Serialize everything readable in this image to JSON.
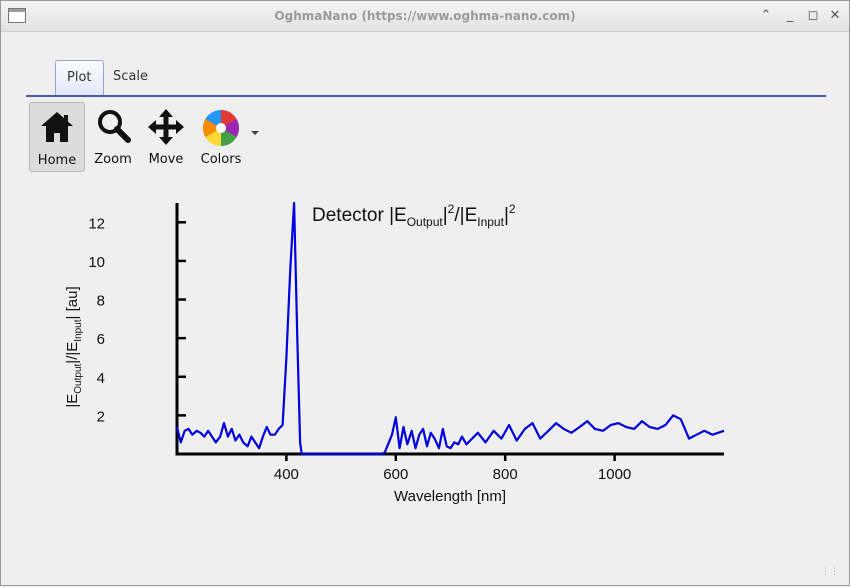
{
  "window": {
    "title": "OghmaNano (https://www.oghma-nano.com)"
  },
  "tabs": [
    {
      "label": "Plot",
      "active": true
    },
    {
      "label": "Scale",
      "active": false
    }
  ],
  "toolbar": [
    {
      "label": "Home",
      "icon": "home-icon",
      "active": true
    },
    {
      "label": "Zoom",
      "icon": "zoom-icon"
    },
    {
      "label": "Move",
      "icon": "move-icon"
    },
    {
      "label": "Colors",
      "icon": "color-wheel-icon",
      "has_dropdown": true
    }
  ],
  "chart_data": {
    "type": "line",
    "title_main": "Detector |E",
    "title_sub1": "Output",
    "title_mid": "|",
    "title_sup1": "2",
    "title_mid2": "/|E",
    "title_sub2": "Input",
    "title_end": "|",
    "title_sup2": "2",
    "xlabel": "Wavelength [nm]",
    "ylabel_parts": [
      "|E",
      "Output",
      "|/|E",
      "Input",
      "| [au]"
    ],
    "xlim": [
      200,
      1200
    ],
    "ylim": [
      0,
      13
    ],
    "xticks": [
      400,
      600,
      800,
      1000
    ],
    "yticks": [
      2,
      4,
      6,
      8,
      10,
      12
    ],
    "line_color": "#0000e0",
    "series": [
      {
        "x": [
          200,
          207,
          214,
          221,
          228,
          236,
          243,
          250,
          257,
          264,
          271,
          279,
          286,
          293,
          300,
          307,
          314,
          321,
          329,
          336,
          343,
          350,
          357,
          364,
          371,
          379,
          386,
          393,
          400,
          407,
          414,
          420,
          425,
          428,
          431,
          434,
          436,
          438,
          440,
          443,
          446,
          450,
          460,
          500,
          540,
          570,
          575,
          580,
          586,
          593,
          600,
          607,
          614,
          621,
          629,
          636,
          643,
          650,
          657,
          664,
          671,
          679,
          686,
          693,
          700,
          707,
          714,
          721,
          729,
          736,
          750,
          764,
          779,
          793,
          807,
          821,
          836,
          850,
          864,
          879,
          893,
          907,
          921,
          936,
          950,
          964,
          979,
          993,
          1007,
          1021,
          1036,
          1050,
          1064,
          1079,
          1093,
          1107,
          1121,
          1136,
          1150,
          1164,
          1179,
          1200
        ],
        "y": [
          1.4,
          0.6,
          1.2,
          1.3,
          1.0,
          1.2,
          1.1,
          0.9,
          1.2,
          0.9,
          0.6,
          0.9,
          1.6,
          0.9,
          1.3,
          0.7,
          1.0,
          0.6,
          0.4,
          0.9,
          0.6,
          0.3,
          0.9,
          1.4,
          1.0,
          1.0,
          1.3,
          1.5,
          5.0,
          9.5,
          13.0,
          6.0,
          0.6,
          0.0,
          0.0,
          0.0,
          0.0,
          0.0,
          0.0,
          0.0,
          0.0,
          0.0,
          0.0,
          0.0,
          0.0,
          0.0,
          0.0,
          0.1,
          0.5,
          1.0,
          1.9,
          0.3,
          1.4,
          0.5,
          1.2,
          0.3,
          1.0,
          1.3,
          0.4,
          1.1,
          0.8,
          0.3,
          1.3,
          0.4,
          0.3,
          0.6,
          0.5,
          0.9,
          0.5,
          0.7,
          1.1,
          0.6,
          1.2,
          0.8,
          1.5,
          0.7,
          1.3,
          1.6,
          0.8,
          1.2,
          1.6,
          1.3,
          1.1,
          1.4,
          1.7,
          1.3,
          1.2,
          1.5,
          1.6,
          1.4,
          1.3,
          1.7,
          1.4,
          1.3,
          1.5,
          2.0,
          1.8,
          0.8,
          1.0,
          1.2,
          1.0,
          1.2
        ]
      }
    ]
  }
}
